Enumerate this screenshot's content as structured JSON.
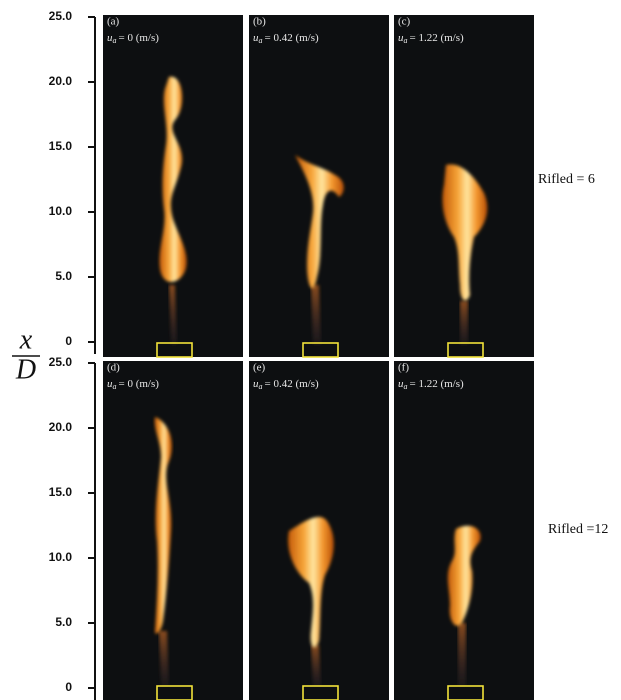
{
  "axis_label": {
    "numerator": "x",
    "denominator": "D"
  },
  "axes": [
    {
      "ticks": [
        "25.0",
        "20.0",
        "15.0",
        "10.0",
        "5.0",
        "0"
      ]
    },
    {
      "ticks": [
        "25.0",
        "20.0",
        "15.0",
        "10.0",
        "5.0",
        "0"
      ]
    }
  ],
  "rows": [
    {
      "label": "Rifled = 6",
      "panels": [
        {
          "id": "(a)",
          "symbol": "u",
          "subscript": "a",
          "speed": "= 0 (m/s)"
        },
        {
          "id": "(b)",
          "symbol": "u",
          "subscript": "a",
          "speed": "= 0.42 (m/s)"
        },
        {
          "id": "(c)",
          "symbol": "u",
          "subscript": "a",
          "speed": "= 1.22 (m/s)"
        }
      ]
    },
    {
      "label": "Rifled =12",
      "panels": [
        {
          "id": "(d)",
          "symbol": "u",
          "subscript": "a",
          "speed": "= 0 (m/s)"
        },
        {
          "id": "(e)",
          "symbol": "u",
          "subscript": "a",
          "speed": "= 0.42 (m/s)"
        },
        {
          "id": "(f)",
          "symbol": "u",
          "subscript": "a",
          "speed": "= 1.22 (m/s)"
        }
      ]
    }
  ]
}
